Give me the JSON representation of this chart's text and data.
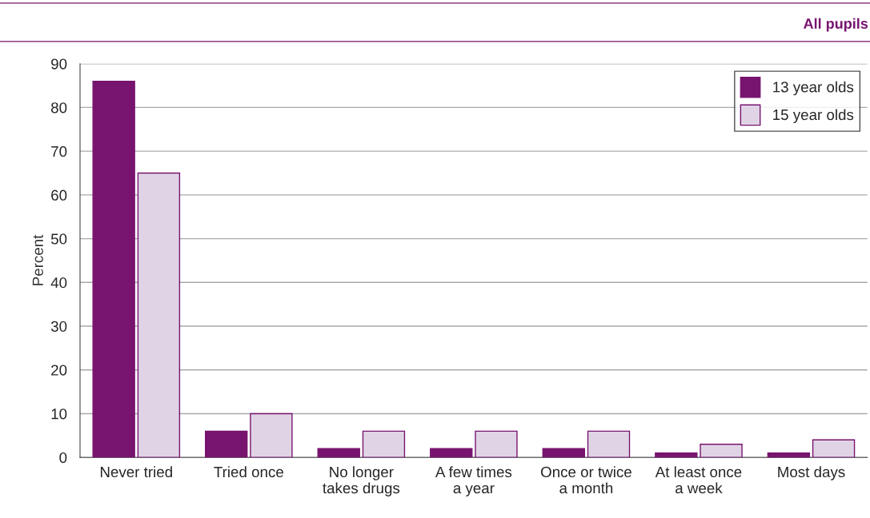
{
  "chart_data": {
    "type": "bar",
    "ylabel": "Percent",
    "categories": [
      "Never tried",
      "Tried once",
      "No longer\ntakes drugs",
      "A few times\na year",
      "Once or twice\na month",
      "At least once\na week",
      "Most days"
    ],
    "series": [
      {
        "name": "13 year olds",
        "color": "#77146f",
        "values": [
          86,
          6,
          2,
          2,
          2,
          1,
          1
        ]
      },
      {
        "name": "15 year olds",
        "color": "#e0d3e5",
        "values": [
          65,
          10,
          6,
          6,
          6,
          3,
          4
        ]
      }
    ],
    "ylim": [
      0,
      90
    ],
    "yticks": [
      0,
      10,
      20,
      30,
      40,
      50,
      60,
      70,
      80,
      90
    ],
    "grid": "y",
    "legend": "top right",
    "annotations": [
      "All pupils"
    ]
  }
}
